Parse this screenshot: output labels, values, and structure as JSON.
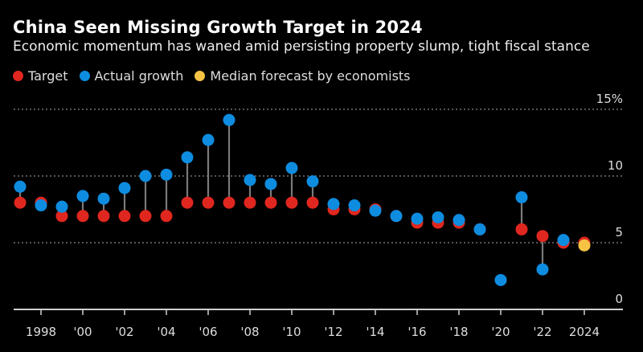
{
  "chart_data": {
    "type": "dot-range",
    "title": "China Seen Missing Growth Target in 2024",
    "subtitle": "Economic momentum has waned amid persisting property slump, tight fiscal stance",
    "legend": [
      {
        "name": "Target",
        "color": "#e0271f"
      },
      {
        "name": "Actual growth",
        "color": "#0d8ce0"
      },
      {
        "name": "Median forecast by economists",
        "color": "#f6c343"
      }
    ],
    "legend_placement": "top-left",
    "x": [
      1997,
      1998,
      1999,
      2000,
      2001,
      2002,
      2003,
      2004,
      2005,
      2006,
      2007,
      2008,
      2009,
      2010,
      2011,
      2012,
      2013,
      2014,
      2015,
      2016,
      2017,
      2018,
      2019,
      2020,
      2021,
      2022,
      2023,
      2024
    ],
    "series": [
      {
        "name": "Target",
        "values": [
          8,
          8,
          7,
          7,
          7,
          7,
          7,
          7,
          8,
          8,
          8,
          8,
          8,
          8,
          8,
          7.5,
          7.5,
          7.5,
          7,
          6.5,
          6.5,
          6.5,
          6,
          null,
          6,
          5.5,
          5,
          5
        ]
      },
      {
        "name": "Actual growth",
        "values": [
          9.2,
          7.8,
          7.7,
          8.5,
          8.3,
          9.1,
          10.0,
          10.1,
          11.4,
          12.7,
          14.2,
          9.7,
          9.4,
          10.6,
          9.6,
          7.9,
          7.8,
          7.4,
          7.0,
          6.8,
          6.9,
          6.7,
          6.0,
          2.2,
          8.4,
          3.0,
          5.2,
          null
        ]
      },
      {
        "name": "Median forecast by economists",
        "values": [
          null,
          null,
          null,
          null,
          null,
          null,
          null,
          null,
          null,
          null,
          null,
          null,
          null,
          null,
          null,
          null,
          null,
          null,
          null,
          null,
          null,
          null,
          null,
          null,
          null,
          null,
          null,
          4.8
        ]
      }
    ],
    "x_tick_labels": [
      {
        "x": 1998,
        "label": "1998"
      },
      {
        "x": 2000,
        "label": "'00"
      },
      {
        "x": 2002,
        "label": "'02"
      },
      {
        "x": 2004,
        "label": "'04"
      },
      {
        "x": 2006,
        "label": "'06"
      },
      {
        "x": 2008,
        "label": "'08"
      },
      {
        "x": 2010,
        "label": "'10"
      },
      {
        "x": 2012,
        "label": "'12"
      },
      {
        "x": 2014,
        "label": "'14"
      },
      {
        "x": 2016,
        "label": "'16"
      },
      {
        "x": 2018,
        "label": "'18"
      },
      {
        "x": 2020,
        "label": "'20"
      },
      {
        "x": 2022,
        "label": "'22"
      },
      {
        "x": 2024,
        "label": "2024"
      }
    ],
    "y_tick_labels": [
      {
        "y": 15,
        "label": "15%"
      },
      {
        "y": 10,
        "label": "10"
      },
      {
        "y": 5,
        "label": "5"
      },
      {
        "y": 0,
        "label": "0"
      }
    ],
    "ylim": [
      0,
      15
    ],
    "xlim": [
      1996.7,
      2025.8
    ],
    "grid": true,
    "y_axis_side": "right",
    "background": "#000000"
  }
}
